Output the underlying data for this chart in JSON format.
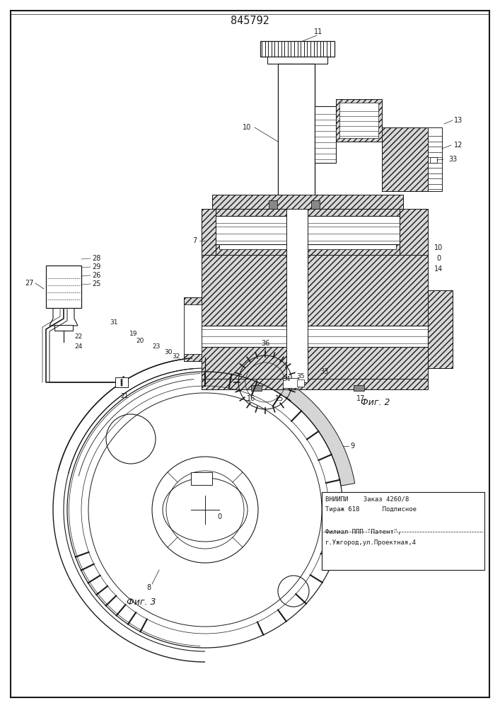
{
  "patent_number": "845792",
  "fig2_label": "Фиг. 2",
  "fig3_label": "Фиг. 3",
  "pub1": "ВНИИПИ    Заказ 4260/8",
  "pub2": "Тираж 618      Подписное",
  "pub3": "Филиал ППП \"Патент\",",
  "pub4": "г.Ужгород,ул.Проектная,4",
  "lc": "#1a1a1a",
  "hc": "#b0b0b0"
}
